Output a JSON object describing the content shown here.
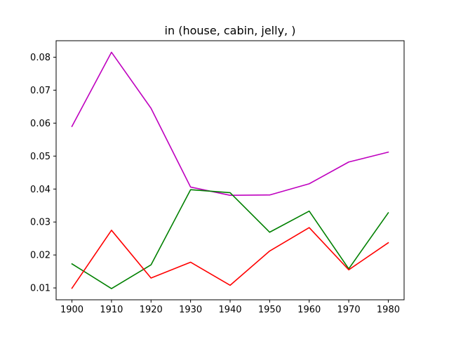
{
  "chart_data": {
    "type": "line",
    "title": "in (house, cabin, jelly, )",
    "xlabel": "",
    "ylabel": "",
    "x": [
      1900,
      1910,
      1920,
      1930,
      1940,
      1950,
      1960,
      1970,
      1980
    ],
    "xticks": [
      1900,
      1910,
      1920,
      1930,
      1940,
      1950,
      1960,
      1970,
      1980
    ],
    "yticks": [
      0.01,
      0.02,
      0.03,
      0.04,
      0.05,
      0.06,
      0.07,
      0.08
    ],
    "ytick_labels": [
      "0.01",
      "0.02",
      "0.03",
      "0.04",
      "0.05",
      "0.06",
      "0.07",
      "0.08"
    ],
    "xlim": [
      1896,
      1984
    ],
    "ylim": [
      0.0064,
      0.085
    ],
    "grid": false,
    "legend": "none",
    "series": [
      {
        "color": "#bf00bf",
        "values": [
          0.059,
          0.0815,
          0.0645,
          0.0406,
          0.0381,
          0.0382,
          0.0416,
          0.0482,
          0.0512
        ]
      },
      {
        "color": "#008000",
        "values": [
          0.0173,
          0.0098,
          0.017,
          0.0398,
          0.0389,
          0.0269,
          0.0333,
          0.0158,
          0.0328
        ]
      },
      {
        "color": "#ff0000",
        "values": [
          0.0099,
          0.0275,
          0.013,
          0.0178,
          0.0108,
          0.0212,
          0.0283,
          0.0155,
          0.0237
        ]
      }
    ]
  }
}
